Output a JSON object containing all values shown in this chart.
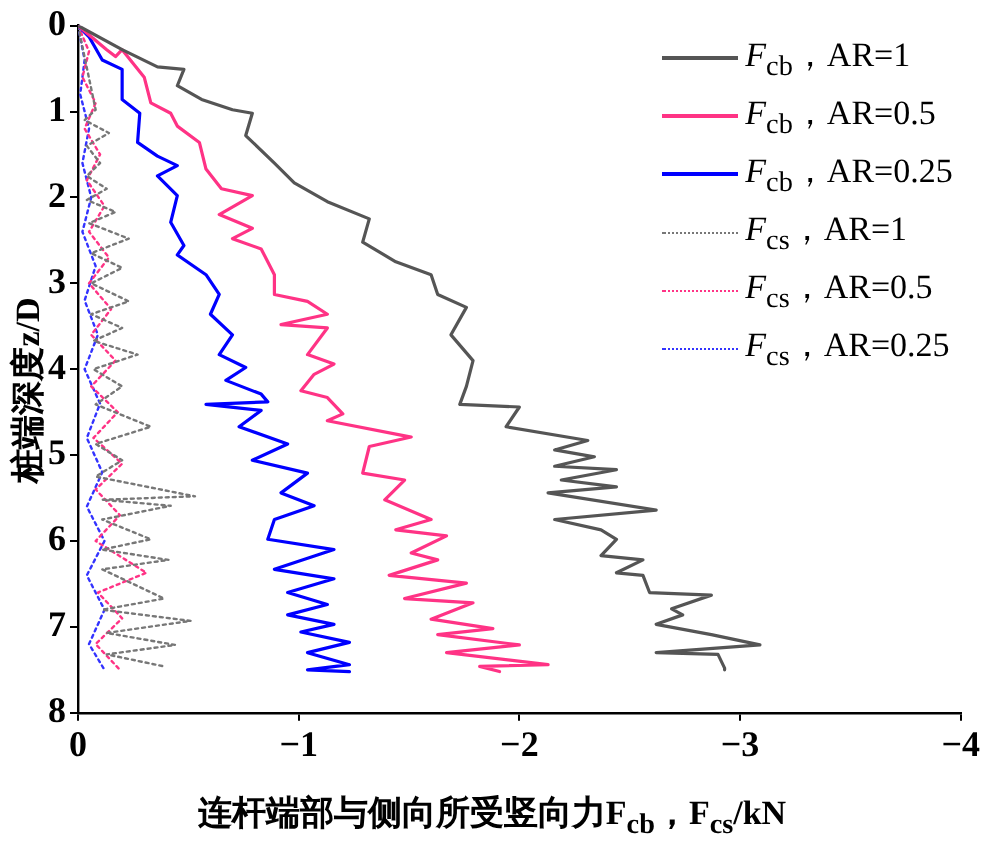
{
  "chart_data": {
    "type": "line",
    "xlabel": "连杆端部与侧向所受竖向力F$_{cb}$，F$_{cs}$/kN",
    "ylabel": "桩端深度z/D",
    "xlim": [
      0,
      -4
    ],
    "ylim": [
      8,
      0
    ],
    "xticks": [
      0,
      {
        "value": -1,
        "label": "−1"
      },
      {
        "value": -2,
        "label": "−2"
      },
      {
        "value": -3,
        "label": "−3"
      },
      {
        "value": -4,
        "label": "−4"
      }
    ],
    "yticks": [
      0,
      1,
      2,
      3,
      4,
      5,
      6,
      7,
      8
    ],
    "grid": false,
    "legend": "top right",
    "marker": "none",
    "tick_labels": [
      "x",
      "y"
    ],
    "series": [
      {
        "name": "F$_{cb}$，AR=1",
        "color": "#555555",
        "line_style": "solid",
        "x": [
          0,
          -0.2,
          -0.36,
          -0.48,
          -0.45,
          -0.56,
          -0.7,
          -0.79,
          -0.76,
          -0.89,
          -0.98,
          -1.13,
          -1.32,
          -1.29,
          -1.44,
          -1.6,
          -1.63,
          -1.76,
          -1.69,
          -1.79,
          -1.76,
          -1.73,
          -2.0,
          -1.94,
          -2.31,
          -2.16,
          -2.34,
          -2.16,
          -2.44,
          -2.19,
          -2.44,
          -2.13,
          -2.62,
          -2.16,
          -2.37,
          -2.44,
          -2.37,
          -2.56,
          -2.44,
          -2.56,
          -2.59,
          -2.87,
          -2.69,
          -2.74,
          -2.62,
          -2.87,
          -3.09,
          -2.62,
          -2.9,
          -2.93,
          -2.93
        ],
        "values": [
          0,
          0.28,
          0.48,
          0.51,
          0.7,
          0.86,
          0.98,
          1.02,
          1.28,
          1.6,
          1.83,
          2.05,
          2.25,
          2.52,
          2.75,
          2.9,
          3.13,
          3.28,
          3.6,
          3.9,
          4.2,
          4.41,
          4.44,
          4.67,
          4.83,
          4.94,
          5.02,
          5.13,
          5.17,
          5.29,
          5.37,
          5.44,
          5.64,
          5.75,
          5.87,
          5.98,
          6.17,
          6.22,
          6.37,
          6.4,
          6.6,
          6.63,
          6.79,
          6.86,
          6.97,
          7.09,
          7.21,
          7.3,
          7.32,
          7.48,
          7.5
        ]
      },
      {
        "name": "F$_{cb}$，AR=0.5",
        "color": "#ff3385",
        "line_style": "solid",
        "x": [
          0,
          -0.13,
          -0.17,
          -0.2,
          -0.3,
          -0.33,
          -0.42,
          -0.45,
          -0.55,
          -0.58,
          -0.65,
          -0.79,
          -0.64,
          -0.79,
          -0.7,
          -0.83,
          -0.89,
          -0.89,
          -1.04,
          -1.13,
          -0.92,
          -1.13,
          -1.04,
          -1.16,
          -1.07,
          -1.01,
          -1.13,
          -1.2,
          -1.13,
          -1.51,
          -1.32,
          -1.29,
          -1.48,
          -1.39,
          -1.6,
          -1.44,
          -1.67,
          -1.51,
          -1.63,
          -1.41,
          -1.76,
          -1.48,
          -1.79,
          -1.6,
          -1.88,
          -1.63,
          -2.0,
          -1.67,
          -2.13,
          -1.82,
          -1.91
        ],
        "values": [
          0,
          0.28,
          0.36,
          0.28,
          0.6,
          0.9,
          1.02,
          1.17,
          1.36,
          1.67,
          1.9,
          1.98,
          2.2,
          2.36,
          2.48,
          2.6,
          2.9,
          3.13,
          3.21,
          3.36,
          3.48,
          3.52,
          3.83,
          3.94,
          4.06,
          4.25,
          4.33,
          4.52,
          4.6,
          4.79,
          4.9,
          5.21,
          5.29,
          5.52,
          5.75,
          5.87,
          5.94,
          6.14,
          6.22,
          6.4,
          6.49,
          6.67,
          6.72,
          6.91,
          7.02,
          7.09,
          7.21,
          7.3,
          7.44,
          7.46,
          7.52
        ]
      },
      {
        "name": "F$_{cb}$，AR=0.25",
        "color": "#0000ff",
        "line_style": "solid",
        "x": [
          0,
          -0.05,
          -0.11,
          -0.2,
          -0.2,
          -0.28,
          -0.27,
          -0.36,
          -0.45,
          -0.36,
          -0.45,
          -0.42,
          -0.48,
          -0.45,
          -0.58,
          -0.64,
          -0.6,
          -0.7,
          -0.64,
          -0.76,
          -0.67,
          -0.83,
          -0.86,
          -0.58,
          -0.83,
          -0.73,
          -0.95,
          -0.79,
          -1.04,
          -0.92,
          -1.07,
          -0.89,
          -0.86,
          -1.16,
          -0.89,
          -1.16,
          -0.95,
          -1.13,
          -0.95,
          -1.16,
          -1.01,
          -1.23,
          -1.04,
          -1.23,
          -1.04,
          -1.23
        ],
        "values": [
          0,
          0.13,
          0.4,
          0.51,
          0.86,
          1.02,
          1.36,
          1.52,
          1.63,
          1.75,
          1.98,
          2.29,
          2.56,
          2.67,
          2.9,
          3.13,
          3.36,
          3.6,
          3.83,
          3.98,
          4.13,
          4.29,
          4.38,
          4.41,
          4.48,
          4.67,
          4.87,
          5.06,
          5.21,
          5.44,
          5.59,
          5.75,
          5.98,
          6.1,
          6.33,
          6.44,
          6.6,
          6.74,
          6.86,
          6.97,
          7.06,
          7.18,
          7.3,
          7.44,
          7.5,
          7.52
        ]
      },
      {
        "name": "F$_{cs}$，AR=1",
        "color": "#777777",
        "line_style": "dotted",
        "x": [
          0,
          -0.08,
          -0.03,
          -0.14,
          -0.04,
          -0.1,
          -0.04,
          -0.13,
          -0.04,
          -0.17,
          -0.05,
          -0.23,
          -0.06,
          -0.2,
          -0.06,
          -0.23,
          -0.06,
          -0.2,
          -0.07,
          -0.27,
          -0.07,
          -0.2,
          -0.08,
          -0.33,
          -0.08,
          -0.2,
          -0.08,
          -0.53,
          -0.11,
          -0.42,
          -0.11,
          -0.33,
          -0.11,
          -0.41,
          -0.11,
          -0.39,
          -0.11,
          -0.51,
          -0.13,
          -0.44,
          -0.13,
          -0.39
        ],
        "values": [
          0,
          0.98,
          1.1,
          1.25,
          1.4,
          1.6,
          1.75,
          1.9,
          2.03,
          2.17,
          2.3,
          2.48,
          2.65,
          2.82,
          3.0,
          3.21,
          3.36,
          3.52,
          3.67,
          3.83,
          4.0,
          4.2,
          4.41,
          4.67,
          4.87,
          5.06,
          5.25,
          5.48,
          5.52,
          5.59,
          5.75,
          5.98,
          6.1,
          6.22,
          6.33,
          6.67,
          6.8,
          6.93,
          7.07,
          7.21,
          7.32,
          7.46
        ]
      },
      {
        "name": "F$_{cs}$，AR=0.5",
        "color": "#ff3385",
        "line_style": "dotted",
        "x": [
          0,
          -0.05,
          -0.02,
          -0.08,
          -0.03,
          -0.1,
          -0.04,
          -0.12,
          -0.05,
          -0.14,
          -0.05,
          -0.15,
          -0.06,
          -0.17,
          -0.06,
          -0.18,
          -0.07,
          -0.2,
          -0.08,
          -0.19,
          -0.08,
          -0.31,
          -0.09,
          -0.2,
          -0.08,
          -0.19
        ],
        "values": [
          0,
          0.3,
          0.6,
          0.9,
          1.2,
          1.5,
          1.8,
          2.1,
          2.4,
          2.7,
          3.0,
          3.3,
          3.6,
          3.9,
          4.2,
          4.5,
          4.8,
          5.1,
          5.4,
          5.7,
          6.0,
          6.37,
          6.6,
          6.9,
          7.2,
          7.5
        ]
      },
      {
        "name": "F$_{cs}$，AR=0.25",
        "color": "#3333ff",
        "line_style": "dotted",
        "x": [
          0,
          -0.03,
          -0.01,
          -0.05,
          -0.02,
          -0.06,
          -0.02,
          -0.08,
          -0.03,
          -0.09,
          -0.03,
          -0.1,
          -0.04,
          -0.11,
          -0.04,
          -0.12,
          -0.04,
          -0.12,
          -0.05,
          -0.12
        ],
        "values": [
          0,
          0.4,
          0.8,
          1.2,
          1.6,
          2.0,
          2.4,
          2.8,
          3.2,
          3.6,
          4.0,
          4.4,
          4.8,
          5.2,
          5.6,
          6.0,
          6.4,
          6.8,
          7.2,
          7.5
        ]
      }
    ]
  }
}
